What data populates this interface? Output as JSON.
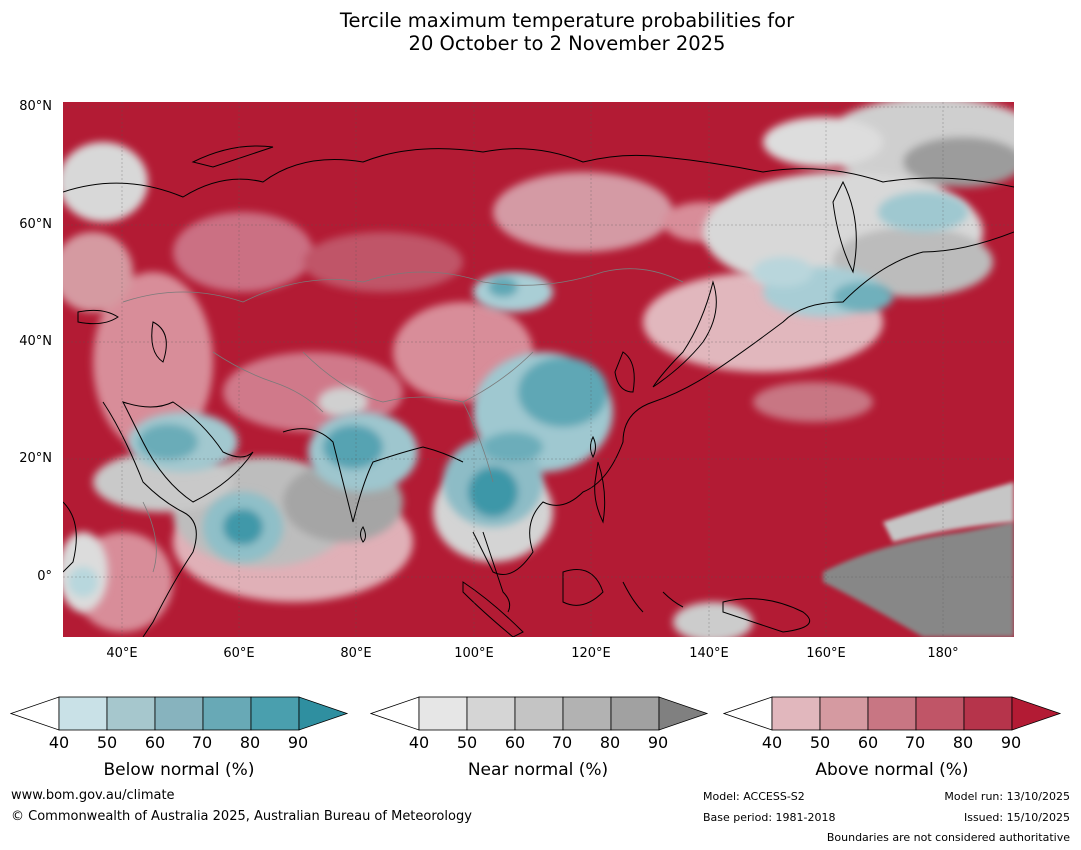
{
  "title": {
    "line1": "Tercile maximum temperature probabilities for",
    "line2": "20 October to 2 November 2025"
  },
  "map": {
    "lat_labels": [
      "80°N",
      "60°N",
      "40°N",
      "20°N",
      "0°"
    ],
    "lon_labels": [
      "40°E",
      "60°E",
      "80°E",
      "100°E",
      "120°E",
      "140°E",
      "160°E",
      "180°"
    ],
    "colors": {
      "above_dominant": "#b31b34",
      "ocean_land_above": "#b31b34"
    }
  },
  "colorbars": [
    {
      "title": "Below normal (%)",
      "ticks": [
        "40",
        "50",
        "60",
        "70",
        "80",
        "90"
      ],
      "colors": [
        "#ffffff",
        "#c9e1e7",
        "#a6c7cd",
        "#87b3be",
        "#68a9b6",
        "#4a9fae",
        "#2f8fa0"
      ]
    },
    {
      "title": "Near normal (%)",
      "ticks": [
        "40",
        "50",
        "60",
        "70",
        "80",
        "90"
      ],
      "colors": [
        "#ffffff",
        "#e6e6e6",
        "#d5d5d5",
        "#c4c4c4",
        "#b2b2b2",
        "#a1a1a1",
        "#808080"
      ]
    },
    {
      "title": "Above normal (%)",
      "ticks": [
        "40",
        "50",
        "60",
        "70",
        "80",
        "90"
      ],
      "colors": [
        "#ffffff",
        "#e1b7bd",
        "#d59aa1",
        "#c87683",
        "#c05567",
        "#b6344b",
        "#b31b34"
      ]
    }
  ],
  "footer": {
    "website": "www.bom.gov.au/climate",
    "copyright": "© Commonwealth of Australia 2025, Australian Bureau of Meteorology",
    "model": "Model: ACCESS-S2",
    "base_period": "Base period: 1981-2018",
    "model_run": "Model run: 13/10/2025",
    "issued": "Issued: 15/10/2025",
    "disclaimer": "Boundaries are not considered authoritative"
  }
}
